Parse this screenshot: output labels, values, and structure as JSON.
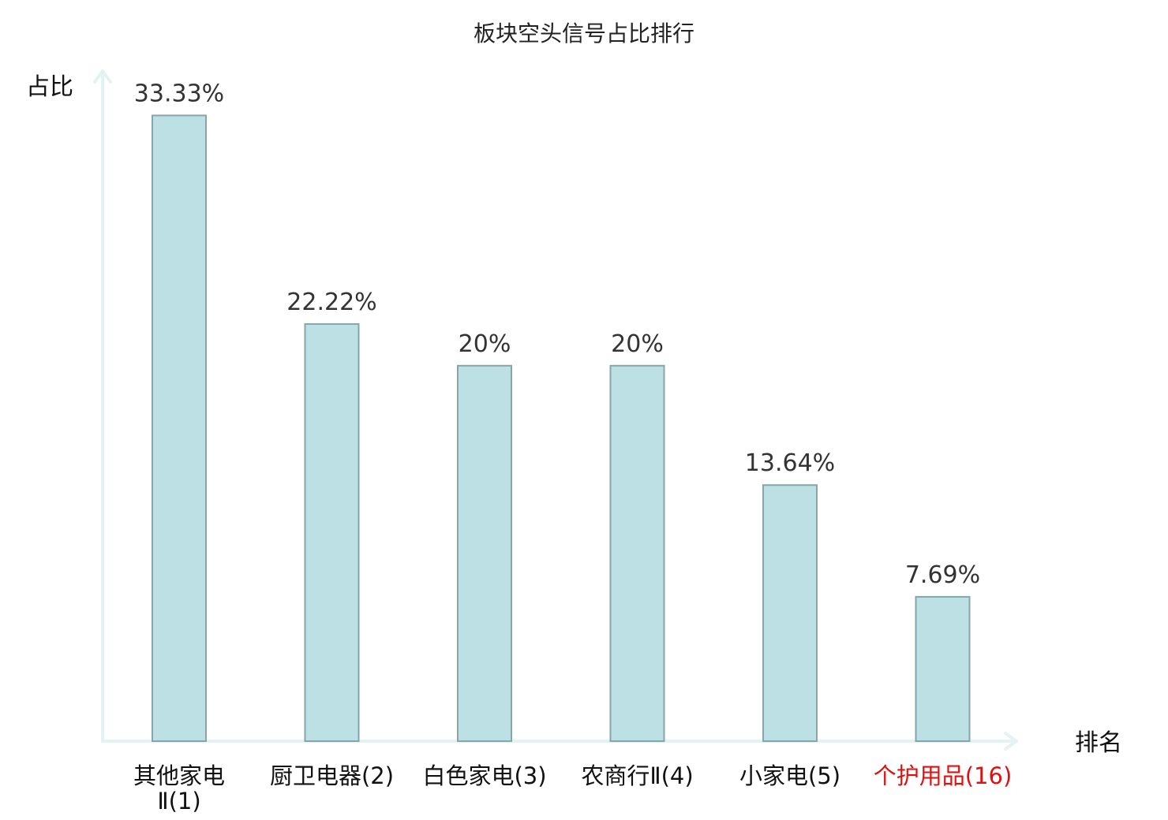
{
  "chart_data": {
    "type": "bar",
    "title": "板块空头信号占比排行",
    "ylabel": "占比",
    "xlabel": "排名",
    "grid": false,
    "legend": "none",
    "ylim": [
      0,
      35.7
    ],
    "categories": [
      {
        "name": "其他家电Ⅱ",
        "rank": "(1)",
        "lines": [
          "其他家电",
          "Ⅱ(1)"
        ],
        "highlight": false
      },
      {
        "name": "厨卫电器",
        "rank": "(2)",
        "lines": [
          "厨卫电器(2)"
        ],
        "highlight": false
      },
      {
        "name": "白色家电",
        "rank": "(3)",
        "lines": [
          "白色家电(3)"
        ],
        "highlight": false
      },
      {
        "name": "农商行Ⅱ",
        "rank": "(4)",
        "lines": [
          "农商行Ⅱ(4)"
        ],
        "highlight": false
      },
      {
        "name": "小家电",
        "rank": "(5)",
        "lines": [
          "小家电(5)"
        ],
        "highlight": false
      },
      {
        "name": "个护用品",
        "rank": "(16)",
        "lines": [
          "个护用品(16)"
        ],
        "highlight": true
      }
    ],
    "values": [
      33.33,
      22.22,
      20,
      20,
      13.64,
      7.69
    ],
    "value_labels": [
      "33.33%",
      "22.22%",
      "20%",
      "20%",
      "13.64%",
      "7.69%"
    ],
    "colors": {
      "bar_fill": "#bce0e3",
      "bar_stroke": "#86a6a8",
      "axis": "#e3f3f1",
      "highlight_text": "#e01010"
    }
  }
}
